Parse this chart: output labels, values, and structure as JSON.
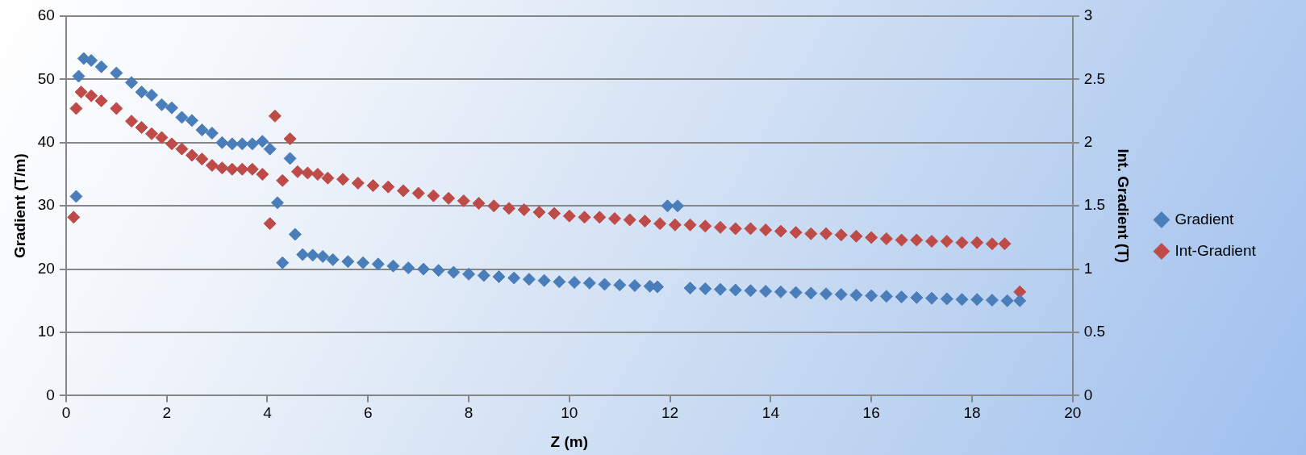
{
  "chart_data": {
    "type": "scatter",
    "xlabel": "Z (m)",
    "ylabel": "Gradient (T/m)",
    "y2label": "Int. Gradient (T)",
    "xlim": [
      0,
      20
    ],
    "xticks": [
      0,
      2,
      4,
      6,
      8,
      10,
      12,
      14,
      16,
      18,
      20
    ],
    "ylim": [
      0,
      60
    ],
    "yticks": [
      0,
      10,
      20,
      30,
      40,
      50,
      60
    ],
    "y2lim": [
      0,
      3
    ],
    "y2ticks": [
      0,
      0.5,
      1,
      1.5,
      2,
      2.5,
      3
    ],
    "grid": "y",
    "legend": "right",
    "marker": "diamond",
    "series": [
      {
        "name": "Gradient",
        "color": "#4a7ebb",
        "x": [
          0.2,
          0.25,
          0.35,
          0.5,
          0.7,
          1.0,
          1.3,
          1.5,
          1.7,
          1.9,
          2.1,
          2.3,
          2.5,
          2.7,
          2.9,
          3.1,
          3.3,
          3.5,
          3.7,
          3.9,
          4.05,
          4.2,
          4.3,
          4.45,
          4.55,
          4.7,
          4.9,
          5.1,
          5.3,
          5.6,
          5.9,
          6.2,
          6.5,
          6.8,
          7.1,
          7.4,
          7.7,
          8.0,
          8.3,
          8.6,
          8.9,
          9.2,
          9.5,
          9.8,
          10.1,
          10.4,
          10.7,
          11.0,
          11.3,
          11.6,
          11.75,
          11.95,
          12.15,
          12.4,
          12.7,
          13.0,
          13.3,
          13.6,
          13.9,
          14.2,
          14.5,
          14.8,
          15.1,
          15.4,
          15.7,
          16.0,
          16.3,
          16.6,
          16.9,
          17.2,
          17.5,
          17.8,
          18.1,
          18.4,
          18.7,
          18.95
        ],
        "values": [
          31.5,
          50.5,
          53.3,
          53,
          52,
          51,
          49.5,
          48,
          47.5,
          46,
          45.5,
          44,
          43.5,
          42,
          41.5,
          40,
          39.8,
          39.8,
          39.8,
          40.2,
          39,
          30.5,
          21,
          37.5,
          25.5,
          22.3,
          22.2,
          22,
          21.5,
          21.2,
          21,
          20.8,
          20.5,
          20.2,
          20,
          19.8,
          19.5,
          19.2,
          19,
          18.8,
          18.6,
          18.4,
          18.2,
          18,
          17.9,
          17.8,
          17.6,
          17.5,
          17.4,
          17.3,
          17.2,
          30,
          30,
          17,
          16.9,
          16.8,
          16.7,
          16.6,
          16.5,
          16.4,
          16.3,
          16.2,
          16.1,
          16,
          15.9,
          15.8,
          15.7,
          15.6,
          15.5,
          15.4,
          15.3,
          15.2,
          15.2,
          15.1,
          15.0,
          15.0
        ]
      },
      {
        "name": "Int-Gradient",
        "color": "#be4b48",
        "axis": "y2",
        "x": [
          0.15,
          0.2,
          0.3,
          0.5,
          0.7,
          1.0,
          1.3,
          1.5,
          1.7,
          1.9,
          2.1,
          2.3,
          2.5,
          2.7,
          2.9,
          3.1,
          3.3,
          3.5,
          3.7,
          3.9,
          4.05,
          4.15,
          4.3,
          4.45,
          4.6,
          4.8,
          5.0,
          5.2,
          5.5,
          5.8,
          6.1,
          6.4,
          6.7,
          7.0,
          7.3,
          7.6,
          7.9,
          8.2,
          8.5,
          8.8,
          9.1,
          9.4,
          9.7,
          10.0,
          10.3,
          10.6,
          10.9,
          11.2,
          11.5,
          11.8,
          12.1,
          12.4,
          12.7,
          13.0,
          13.3,
          13.6,
          13.9,
          14.2,
          14.5,
          14.8,
          15.1,
          15.4,
          15.7,
          16.0,
          16.3,
          16.6,
          16.9,
          17.2,
          17.5,
          17.8,
          18.1,
          18.4,
          18.65,
          18.95
        ],
        "values": [
          1.41,
          2.27,
          2.4,
          2.37,
          2.33,
          2.27,
          2.17,
          2.12,
          2.07,
          2.04,
          1.99,
          1.95,
          1.9,
          1.87,
          1.82,
          1.8,
          1.79,
          1.79,
          1.79,
          1.75,
          1.36,
          2.21,
          1.7,
          2.03,
          1.77,
          1.76,
          1.75,
          1.72,
          1.71,
          1.68,
          1.66,
          1.65,
          1.62,
          1.6,
          1.58,
          1.56,
          1.54,
          1.52,
          1.5,
          1.48,
          1.47,
          1.45,
          1.44,
          1.42,
          1.41,
          1.41,
          1.4,
          1.39,
          1.38,
          1.36,
          1.35,
          1.35,
          1.34,
          1.33,
          1.32,
          1.32,
          1.31,
          1.3,
          1.29,
          1.28,
          1.28,
          1.27,
          1.26,
          1.25,
          1.24,
          1.23,
          1.23,
          1.22,
          1.22,
          1.21,
          1.21,
          1.2,
          1.2,
          0.82
        ]
      }
    ]
  }
}
